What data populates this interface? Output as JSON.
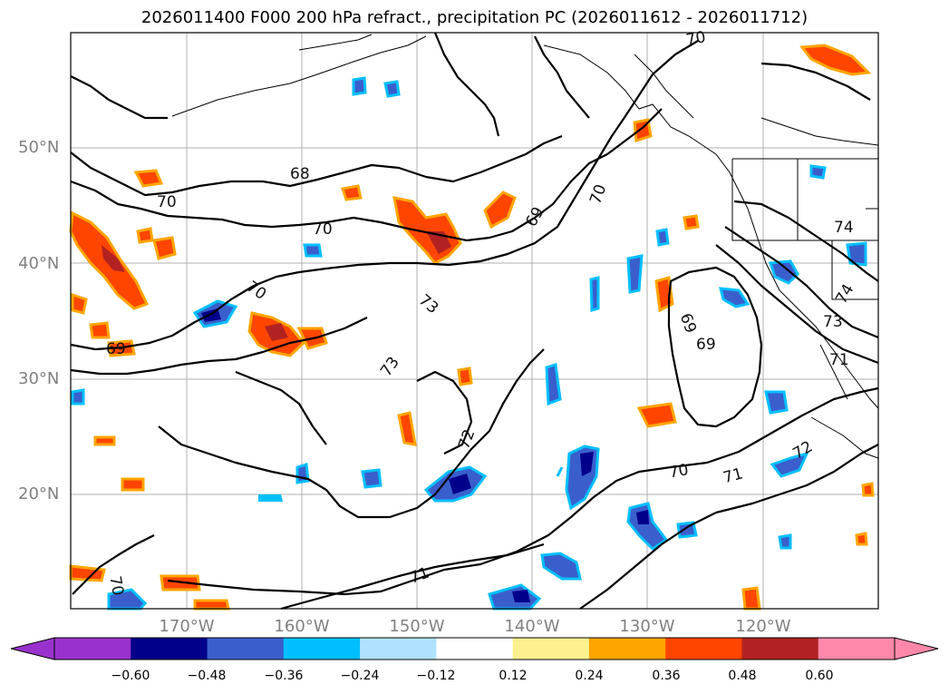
{
  "title": "2026011400 F000 200 hPa refract., precipitation PC (2026011612 - 2026011712)",
  "lat_labels": [
    "50°N",
    "40°N",
    "30°N",
    "20°N"
  ],
  "lon_labels": [
    "170°W",
    "160°W",
    "150°W",
    "140°W",
    "130°W",
    "120°W"
  ],
  "contour_labels": [
    "68",
    "70",
    "70",
    "69",
    "70",
    "70",
    "69",
    "73",
    "72",
    "73",
    "69",
    "69",
    "74",
    "74",
    "73",
    "71",
    "72",
    "71",
    "70",
    "70",
    "71"
  ],
  "colorbar": {
    "ticks": [
      "−0.60",
      "−0.48",
      "−0.36",
      "−0.24",
      "−0.12",
      "0.12",
      "0.24",
      "0.36",
      "0.48",
      "0.60"
    ],
    "colors": [
      "#9932cc",
      "#00008b",
      "#3a5fcd",
      "#00bfff",
      "#b0e2ff",
      "#ffffff",
      "#fff08f",
      "#ffa500",
      "#ff4500",
      "#b22222",
      "#ff88aa"
    ]
  }
}
